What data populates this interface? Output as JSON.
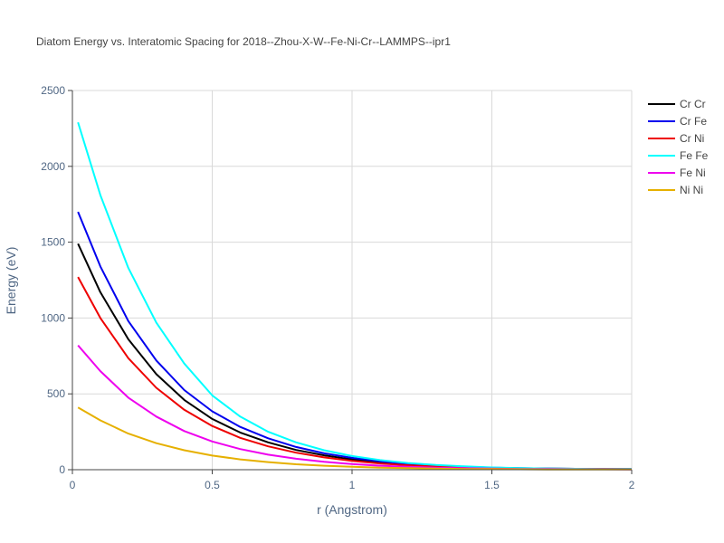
{
  "chart_data": {
    "type": "line",
    "title": "Diatom Energy vs. Interatomic Spacing for 2018--Zhou-X-W--Fe-Ni-Cr--LAMMPS--ipr1",
    "xlabel": "r (Angstrom)",
    "ylabel": "Energy (eV)",
    "xlim": [
      0,
      2
    ],
    "ylim": [
      0,
      2500
    ],
    "x_ticks": [
      0,
      0.5,
      1,
      1.5,
      2
    ],
    "x_tick_labels": [
      "0",
      "0.5",
      "1",
      "1.5",
      "2"
    ],
    "y_ticks": [
      0,
      500,
      1000,
      1500,
      2000,
      2500
    ],
    "y_tick_labels": [
      "0",
      "500",
      "1000",
      "1500",
      "2000",
      "2500"
    ],
    "grid": true,
    "legend_position": "top-right",
    "x": [
      0.02,
      0.1,
      0.2,
      0.3,
      0.4,
      0.5,
      0.6,
      0.7,
      0.8,
      0.9,
      1.0,
      1.1,
      1.2,
      1.3,
      1.4,
      1.5,
      1.6,
      1.7,
      1.8,
      1.9,
      2.0
    ],
    "series": [
      {
        "name": "Cr Cr",
        "color": "#000000",
        "values": [
          1490,
          1170,
          860,
          630,
          460,
          335,
          245,
          180,
          130,
          95,
          68,
          48,
          34,
          24,
          17,
          12,
          9,
          7,
          6,
          5,
          4
        ]
      },
      {
        "name": "Cr Fe",
        "color": "#0000ee",
        "values": [
          1700,
          1340,
          980,
          720,
          525,
          385,
          282,
          207,
          150,
          108,
          78,
          55,
          39,
          28,
          20,
          14,
          10,
          8,
          6,
          5,
          4
        ]
      },
      {
        "name": "Cr Ni",
        "color": "#ee0000",
        "values": [
          1270,
          1000,
          735,
          540,
          395,
          288,
          210,
          154,
          112,
          81,
          58,
          41,
          29,
          21,
          15,
          11,
          8,
          6,
          5,
          4,
          3
        ]
      },
      {
        "name": "Fe Fe",
        "color": "#00ffff",
        "values": [
          2290,
          1810,
          1330,
          970,
          700,
          490,
          350,
          250,
          180,
          128,
          90,
          63,
          44,
          31,
          22,
          15,
          11,
          8,
          6,
          5,
          4
        ]
      },
      {
        "name": "Fe Ni",
        "color": "#ee00ee",
        "values": [
          820,
          650,
          475,
          350,
          255,
          186,
          136,
          99,
          72,
          52,
          37,
          26,
          19,
          14,
          10,
          7,
          5,
          4,
          3,
          3,
          2
        ]
      },
      {
        "name": "Ni Ni",
        "color": "#e6b000",
        "values": [
          410,
          325,
          238,
          175,
          128,
          93,
          68,
          50,
          36,
          26,
          19,
          13,
          10,
          7,
          5,
          4,
          3,
          2,
          2,
          1,
          1
        ]
      }
    ]
  }
}
